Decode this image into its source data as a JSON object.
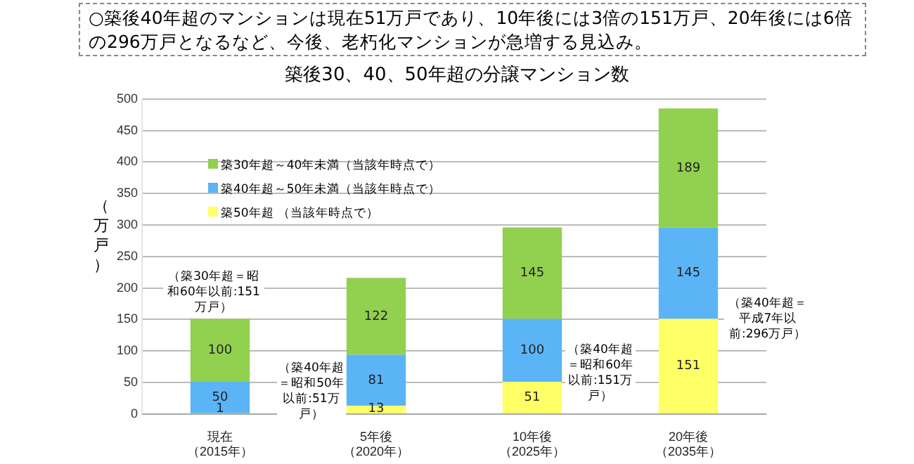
{
  "chart_data": {
    "type": "bar",
    "stacked": true,
    "subtitle": "○築後40年超のマンションは現在51万戸であり、10年後には3倍の151万戸、20年後には6倍の296万戸となるなど、今後、老朽化マンションが急増する見込み。",
    "title": "築後30、40、50年超の分譲マンション数",
    "ylabel": "（万戸）",
    "categories": [
      "現在（2015年）",
      "5年後（2020年）",
      "10年後（2025年）",
      "20年後（2035年）"
    ],
    "series": [
      {
        "name": "築50年超 （当該年時点で）",
        "color": "#ffff66",
        "values": [
          1,
          13,
          51,
          151
        ]
      },
      {
        "name": "築40年超～50年未満（当該年時点で）",
        "color": "#5bb4f5",
        "values": [
          50,
          81,
          100,
          145
        ]
      },
      {
        "name": "築30年超～40年未満（当該年時点で）",
        "color": "#92d050",
        "values": [
          100,
          122,
          145,
          189
        ]
      }
    ],
    "ylim": [
      0,
      500
    ],
    "yticks": [
      0,
      50,
      100,
      150,
      200,
      250,
      300,
      350,
      400,
      450,
      500
    ],
    "grid": "y",
    "legend": "top left",
    "data_labels": true,
    "annotations": [
      "（築30年超＝昭和60年以前:151万戸）",
      "（築40年超＝昭和50年以前:51万戸）",
      "（築40年超＝昭和60年以前:151万戸）",
      "（築40年超＝平成7年以前:296万戸）"
    ]
  }
}
